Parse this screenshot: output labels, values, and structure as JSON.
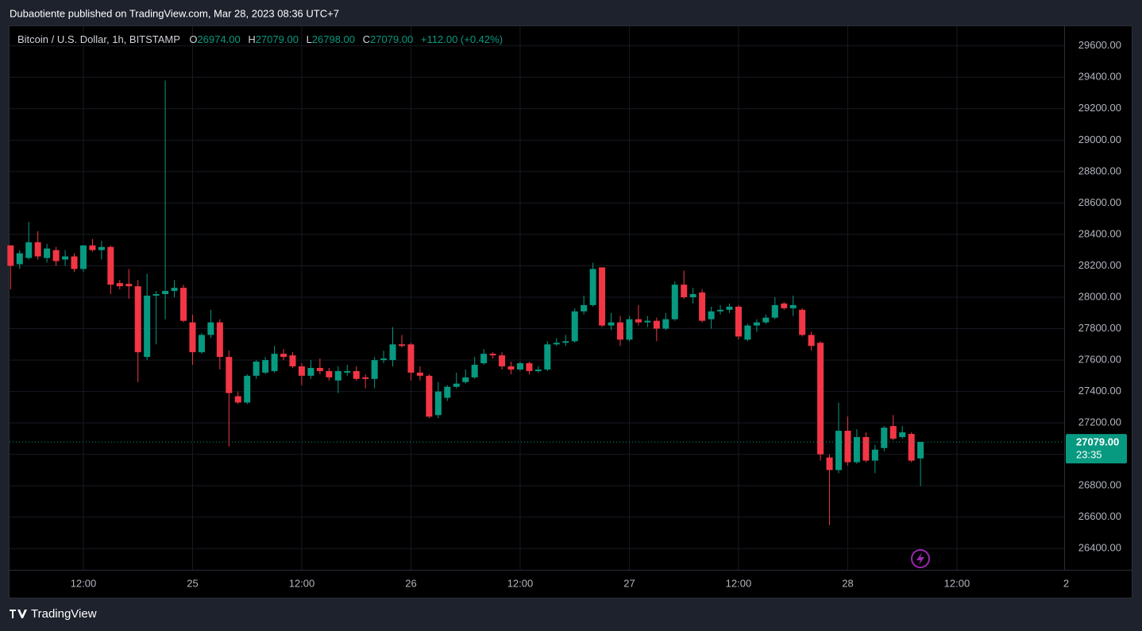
{
  "header": {
    "published": "Dubaotiente published on TradingView.com, Mar 28, 2023 08:36 UTC+7",
    "logo": "TradingView"
  },
  "chart_data": {
    "type": "candlestick",
    "title": "Bitcoin / U.S. Dollar, 1h, BITSTAMP",
    "legend": {
      "o": "O",
      "o_value": "26974.00",
      "h": "H",
      "h_value": "27079.00",
      "l": "L",
      "l_value": "26798.00",
      "c": "C",
      "c_value": "27079.00",
      "change": "+112.00 (+0.42%)"
    },
    "up_color": "#089981",
    "down_color": "#f23645",
    "x": [
      "24 04:00",
      "24 05:00",
      "24 06:00",
      "24 07:00",
      "24 08:00",
      "24 09:00",
      "24 10:00",
      "24 11:00",
      "24 12:00",
      "24 13:00",
      "24 14:00",
      "24 15:00",
      "24 16:00",
      "24 17:00",
      "24 18:00",
      "24 19:00",
      "24 20:00",
      "24 21:00",
      "24 22:00",
      "24 23:00",
      "25 00:00",
      "25 01:00",
      "25 02:00",
      "25 03:00",
      "25 04:00",
      "25 05:00",
      "25 06:00",
      "25 07:00",
      "25 08:00",
      "25 09:00",
      "25 10:00",
      "25 11:00",
      "25 12:00",
      "25 13:00",
      "25 14:00",
      "25 15:00",
      "25 16:00",
      "25 17:00",
      "25 18:00",
      "25 19:00",
      "25 20:00",
      "25 21:00",
      "25 22:00",
      "25 23:00",
      "26 00:00",
      "26 01:00",
      "26 02:00",
      "26 03:00",
      "26 04:00",
      "26 05:00",
      "26 06:00",
      "26 07:00",
      "26 08:00",
      "26 09:00",
      "26 10:00",
      "26 11:00",
      "26 12:00",
      "26 13:00",
      "26 14:00",
      "26 15:00",
      "26 16:00",
      "26 17:00",
      "26 18:00",
      "26 19:00",
      "26 20:00",
      "26 21:00",
      "26 22:00",
      "26 23:00",
      "27 00:00",
      "27 01:00",
      "27 02:00",
      "27 03:00",
      "27 04:00",
      "27 05:00",
      "27 06:00",
      "27 07:00",
      "27 08:00",
      "27 09:00",
      "27 10:00",
      "27 11:00",
      "27 12:00",
      "27 13:00",
      "27 14:00",
      "27 15:00",
      "27 16:00",
      "27 17:00",
      "27 18:00",
      "27 19:00",
      "27 20:00",
      "27 21:00",
      "27 22:00",
      "27 23:00",
      "28 00:00",
      "28 01:00",
      "28 02:00",
      "28 03:00",
      "28 04:00",
      "28 05:00",
      "28 06:00",
      "28 07:00",
      "28 08:00"
    ],
    "open": [
      28330,
      28210,
      28250,
      28350,
      28250,
      28300,
      28240,
      28260,
      28180,
      28330,
      28300,
      28320,
      28090,
      28085,
      28070,
      27620,
      28010,
      28020,
      28040,
      28060,
      27840,
      27650,
      27760,
      27840,
      27620,
      27370,
      27330,
      27500,
      27520,
      27530,
      27640,
      27630,
      27560,
      27500,
      27550,
      27530,
      27470,
      27520,
      27530,
      27490,
      27480,
      27600,
      27600,
      27700,
      27700,
      27520,
      27500,
      27250,
      27360,
      27430,
      27460,
      27490,
      27580,
      27640,
      27630,
      27560,
      27540,
      27580,
      27530,
      27540,
      27700,
      27710,
      27720,
      27910,
      27950,
      28190,
      27820,
      27840,
      27730,
      27860,
      27840,
      27850,
      27800,
      27860,
      28080,
      28000,
      28030,
      27860,
      27910,
      27920,
      27940,
      27730,
      27820,
      27840,
      27870,
      27960,
      27930,
      27920,
      27760,
      27710,
      26980,
      26900,
      27150,
      26950,
      27110,
      26960,
      27040,
      27180,
      27110,
      27130,
      26974
    ],
    "high": [
      28330,
      28300,
      28480,
      28420,
      28340,
      28320,
      28300,
      28280,
      28330,
      28370,
      28360,
      28330,
      28110,
      28180,
      28110,
      28150,
      28040,
      29380,
      28110,
      28080,
      27890,
      27770,
      27920,
      27860,
      27660,
      27400,
      27510,
      27600,
      27620,
      27690,
      27670,
      27650,
      27580,
      27600,
      27610,
      27550,
      27560,
      27570,
      27560,
      27510,
      27620,
      27660,
      27810,
      27760,
      27710,
      27560,
      27510,
      27460,
      27440,
      27520,
      27540,
      27620,
      27670,
      27650,
      27650,
      27590,
      27590,
      27590,
      27560,
      27720,
      27740,
      27760,
      27930,
      28010,
      28220,
      28190,
      27900,
      27880,
      27880,
      27950,
      27880,
      27870,
      27900,
      28100,
      28170,
      28060,
      28050,
      27940,
      27950,
      27960,
      27950,
      27830,
      27860,
      27890,
      28000,
      27970,
      28010,
      27930,
      27780,
      27720,
      27000,
      27330,
      27240,
      27160,
      27140,
      27060,
      27180,
      27250,
      27180,
      27140,
      27079
    ],
    "low": [
      28050,
      28180,
      28240,
      28240,
      28220,
      28200,
      28200,
      28160,
      28160,
      28290,
      28240,
      28020,
      28050,
      27990,
      27460,
      27600,
      27700,
      27860,
      28000,
      27840,
      27570,
      27640,
      27740,
      27540,
      27050,
      27320,
      27320,
      27480,
      27510,
      27520,
      27600,
      27550,
      27440,
      27480,
      27510,
      27470,
      27390,
      27500,
      27470,
      27420,
      27420,
      27580,
      27560,
      27680,
      27470,
      27470,
      27230,
      27230,
      27340,
      27420,
      27450,
      27480,
      27570,
      27610,
      27540,
      27510,
      27530,
      27510,
      27520,
      27530,
      27690,
      27690,
      27710,
      27890,
      27940,
      27810,
      27790,
      27690,
      27720,
      27820,
      27810,
      27720,
      27790,
      27850,
      27990,
      27960,
      27840,
      27800,
      27890,
      27900,
      27730,
      27720,
      27780,
      27830,
      27860,
      27920,
      27880,
      27750,
      27660,
      26960,
      26550,
      26880,
      26930,
      26940,
      26950,
      26880,
      27020,
      27090,
      27100,
      26950,
      26798
    ],
    "close": [
      28200,
      28280,
      28350,
      28260,
      28310,
      28230,
      28260,
      28180,
      28330,
      28300,
      28320,
      28080,
      28070,
      28070,
      27650,
      28010,
      28020,
      28040,
      28060,
      27850,
      27650,
      27760,
      27840,
      27620,
      27390,
      27330,
      27500,
      27590,
      27600,
      27640,
      27620,
      27560,
      27500,
      27550,
      27530,
      27490,
      27530,
      27530,
      27480,
      27480,
      27600,
      27610,
      27700,
      27690,
      27520,
      27500,
      27240,
      27400,
      27430,
      27450,
      27490,
      27570,
      27640,
      27630,
      27560,
      27540,
      27580,
      27530,
      27540,
      27700,
      27710,
      27720,
      27910,
      27950,
      28180,
      27820,
      27840,
      27730,
      27860,
      27840,
      27850,
      27800,
      27860,
      28080,
      28000,
      28020,
      27850,
      27910,
      27920,
      27940,
      27750,
      27820,
      27840,
      27870,
      27950,
      27930,
      27950,
      27760,
      27690,
      27000,
      26900,
      27150,
      26950,
      27110,
      26960,
      27030,
      27170,
      27100,
      27140,
      26960,
      27079
    ],
    "xlim": [
      "24 04:00",
      "28 23:00"
    ],
    "xticks": [
      {
        "value": "24 12:00",
        "label": "12:00"
      },
      {
        "value": "25 00:00",
        "label": "25"
      },
      {
        "value": "25 12:00",
        "label": "12:00"
      },
      {
        "value": "26 00:00",
        "label": "26"
      },
      {
        "value": "26 12:00",
        "label": "12:00"
      },
      {
        "value": "27 00:00",
        "label": "27"
      },
      {
        "value": "27 12:00",
        "label": "12:00"
      },
      {
        "value": "28 00:00",
        "label": "28"
      },
      {
        "value": "28 12:00",
        "label": "12:00"
      },
      {
        "value": "29 00:00",
        "label": "2"
      }
    ],
    "ylim": [
      26265,
      29725
    ],
    "yticks": [
      {
        "value": 26400,
        "label": "26400.00"
      },
      {
        "value": 26600,
        "label": "26600.00"
      },
      {
        "value": 26800,
        "label": "26800.00"
      },
      {
        "value": 27000,
        "label": "27000.00"
      },
      {
        "value": 27200,
        "label": "27200.00"
      },
      {
        "value": 27400,
        "label": "27400.00"
      },
      {
        "value": 27600,
        "label": "27600.00"
      },
      {
        "value": 27800,
        "label": "27800.00"
      },
      {
        "value": 28000,
        "label": "28000.00"
      },
      {
        "value": 28200,
        "label": "28200.00"
      },
      {
        "value": 28400,
        "label": "28400.00"
      },
      {
        "value": 28600,
        "label": "28600.00"
      },
      {
        "value": 28800,
        "label": "28800.00"
      },
      {
        "value": 29000,
        "label": "29000.00"
      },
      {
        "value": 29200,
        "label": "29200.00"
      },
      {
        "value": 29400,
        "label": "29400.00"
      },
      {
        "value": 29600,
        "label": "29600.00"
      }
    ],
    "grid": true,
    "last_price": {
      "value": 27079,
      "label": "27079.00"
    },
    "countdown": "23:35"
  }
}
